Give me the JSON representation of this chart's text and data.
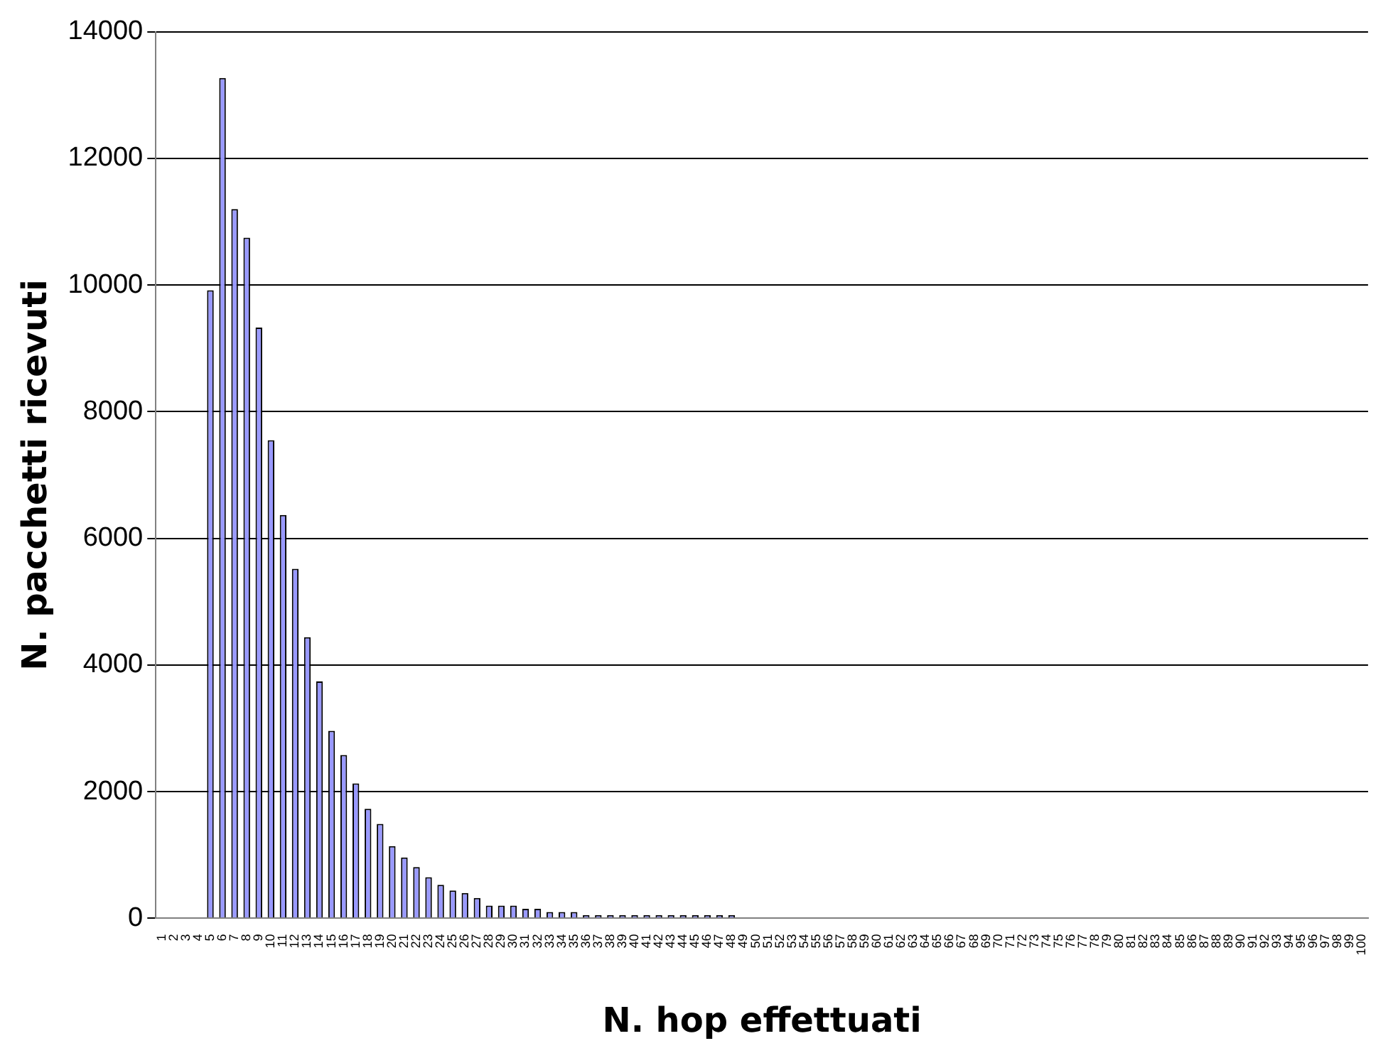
{
  "chart_data": {
    "type": "bar",
    "xlabel": "N. hop effettuati",
    "ylabel": "N. pacchetti ricevuti",
    "categories": [
      "1",
      "2",
      "3",
      "4",
      "5",
      "6",
      "7",
      "8",
      "9",
      "10",
      "11",
      "12",
      "13",
      "14",
      "15",
      "16",
      "17",
      "18",
      "19",
      "20",
      "21",
      "22",
      "23",
      "24",
      "25",
      "26",
      "27",
      "28",
      "29",
      "30",
      "31",
      "32",
      "33",
      "34",
      "35",
      "36",
      "37",
      "38",
      "39",
      "40",
      "41",
      "42",
      "43",
      "44",
      "45",
      "46",
      "47",
      "48",
      "49",
      "50",
      "51",
      "52",
      "53",
      "54",
      "55",
      "56",
      "57",
      "58",
      "59",
      "60",
      "61",
      "62",
      "63",
      "64",
      "65",
      "66",
      "67",
      "68",
      "69",
      "70",
      "71",
      "72",
      "73",
      "74",
      "75",
      "76",
      "77",
      "78",
      "79",
      "80",
      "81",
      "82",
      "83",
      "84",
      "85",
      "86",
      "87",
      "88",
      "89",
      "90",
      "91",
      "92",
      "93",
      "94",
      "95",
      "96",
      "97",
      "98",
      "99",
      "100"
    ],
    "series": [
      {
        "color": "#9999ff",
        "values": [
          0,
          0,
          0,
          0,
          9920,
          13270,
          11200,
          10750,
          9330,
          7550,
          6370,
          5520,
          4440,
          3740,
          2960,
          2580,
          2130,
          1730,
          1490,
          1140,
          960,
          810,
          650,
          530,
          440,
          400,
          320,
          200,
          200,
          200,
          150,
          150,
          100,
          100,
          100,
          50,
          50,
          50,
          50,
          50,
          50,
          50,
          50,
          50,
          50,
          50,
          50,
          50,
          0,
          0,
          0,
          0,
          0,
          0,
          0,
          0,
          0,
          0,
          0,
          0,
          0,
          0,
          0,
          0,
          0,
          0,
          0,
          0,
          0,
          0,
          0,
          0,
          0,
          0,
          0,
          0,
          0,
          0,
          0,
          0,
          0,
          0,
          0,
          0,
          0,
          0,
          0,
          0,
          0,
          0,
          0,
          0,
          0,
          0,
          0,
          0,
          0,
          0,
          0,
          0
        ]
      }
    ],
    "ylim": [
      0,
      14000
    ],
    "yticks": [
      0,
      2000,
      4000,
      6000,
      8000,
      10000,
      12000,
      14000
    ],
    "grid": "y",
    "legend": false
  }
}
